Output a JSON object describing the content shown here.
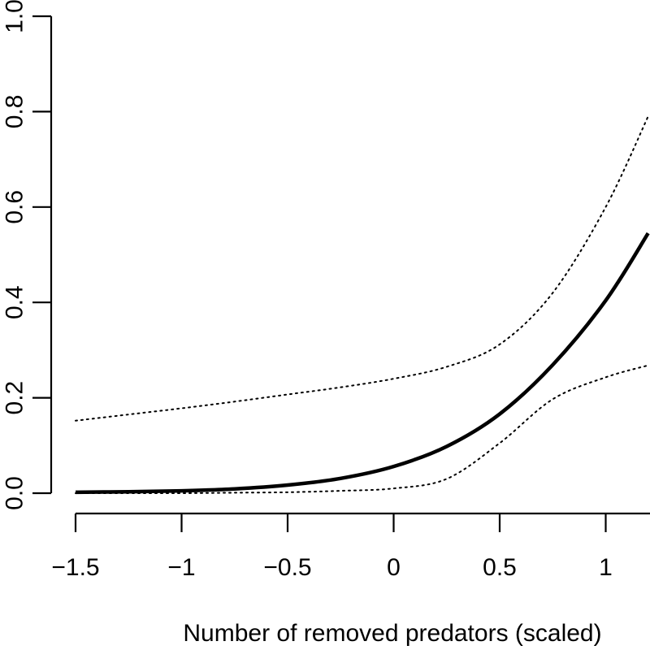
{
  "chart_data": {
    "type": "line",
    "title": "",
    "xlabel": "Number of removed predators (scaled)",
    "ylabel": "",
    "xlim": [
      -1.5,
      1.5
    ],
    "ylim": [
      0.0,
      1.0
    ],
    "x_ticks": [
      -1.5,
      -1,
      -0.5,
      0,
      0.5,
      1
    ],
    "x_tick_labels": [
      "−1.5",
      "−1",
      "−0.5",
      "0",
      "0.5",
      "1"
    ],
    "y_ticks": [
      0.0,
      0.2,
      0.4,
      0.6,
      0.8,
      1.0
    ],
    "y_tick_labels": [
      "0.0",
      "0.2",
      "0.4",
      "0.6",
      "0.8",
      "1.0"
    ],
    "grid": false,
    "legend": "none",
    "series": [
      {
        "role": "fit",
        "style": "solid",
        "x": [
          -1.5,
          -1.25,
          -1.0,
          -0.75,
          -0.5,
          -0.25,
          0.0,
          0.25,
          0.5,
          0.75,
          1.0,
          1.2
        ],
        "y": [
          0.002,
          0.003,
          0.005,
          0.009,
          0.017,
          0.031,
          0.056,
          0.098,
          0.166,
          0.269,
          0.404,
          0.545
        ]
      },
      {
        "role": "upper",
        "style": "dotted",
        "x": [
          -1.5,
          -1.25,
          -1.0,
          -0.75,
          -0.5,
          -0.25,
          0.0,
          0.25,
          0.5,
          0.75,
          1.0,
          1.2
        ],
        "y": [
          0.152,
          0.165,
          0.178,
          0.192,
          0.207,
          0.222,
          0.24,
          0.265,
          0.312,
          0.42,
          0.6,
          0.79
        ]
      },
      {
        "role": "lower",
        "style": "dotted",
        "x": [
          -1.5,
          -1.25,
          -1.0,
          -0.75,
          -0.5,
          -0.25,
          0.0,
          0.25,
          0.5,
          0.75,
          1.0,
          1.2
        ],
        "y": [
          0.0,
          0.0,
          0.0,
          0.001,
          0.002,
          0.005,
          0.01,
          0.03,
          0.105,
          0.197,
          0.243,
          0.268
        ]
      }
    ]
  }
}
